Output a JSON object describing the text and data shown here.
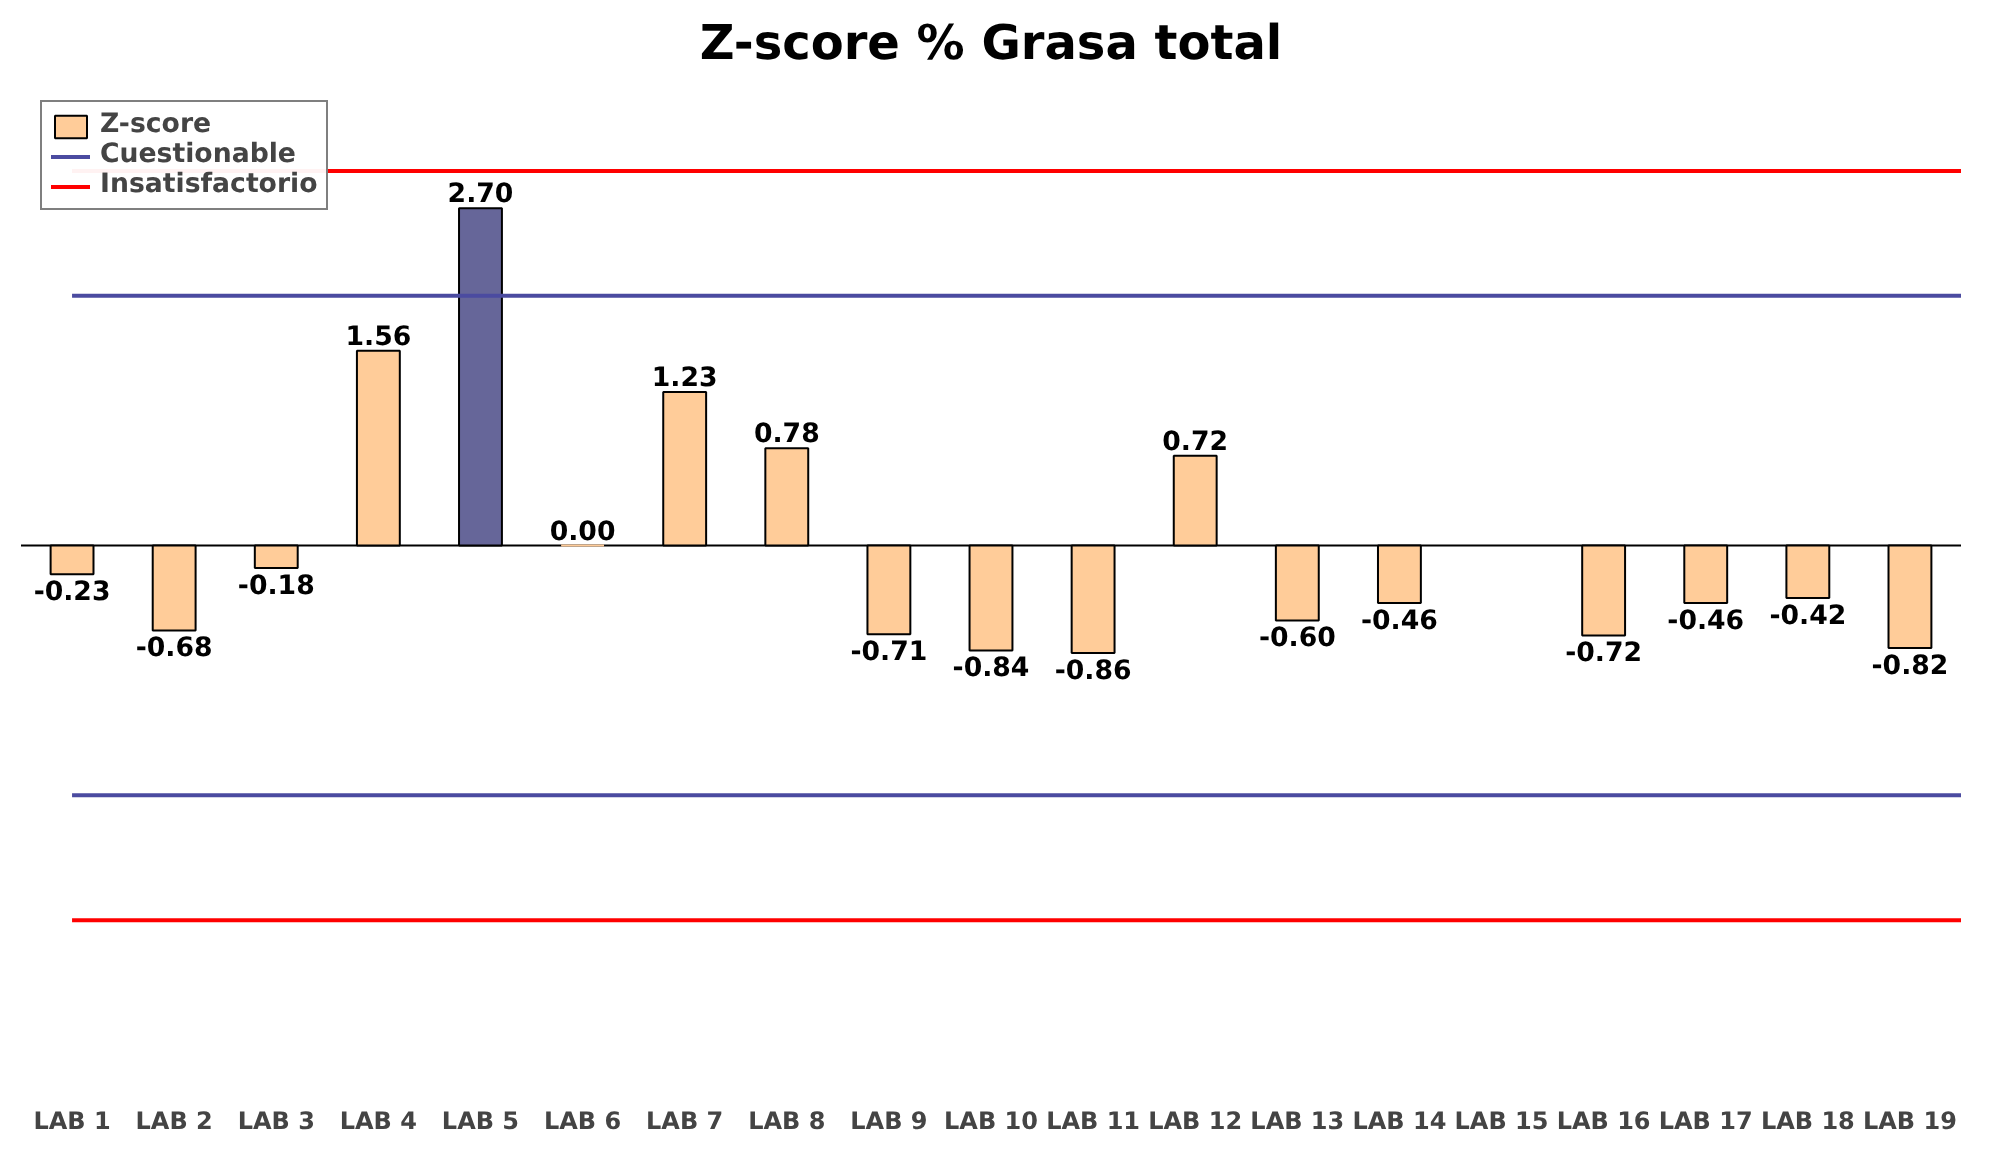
{
  "chart_data": {
    "type": "bar",
    "title": "Z-score % Grasa total",
    "categories": [
      "LAB 1",
      "LAB 2",
      "LAB 3",
      "LAB 4",
      "LAB 5",
      "LAB 6",
      "LAB 7",
      "LAB 8",
      "LAB 9",
      "LAB 10",
      "LAB 11",
      "LAB 12",
      "LAB 13",
      "LAB 14",
      "LAB 15",
      "LAB 16",
      "LAB 17",
      "LAB 18",
      "LAB 19"
    ],
    "series": [
      {
        "name": "Z-score",
        "colors": [
          "#ffcc99",
          "#ffcc99",
          "#ffcc99",
          "#ffcc99",
          "#666699",
          "#ffcc99",
          "#ffcc99",
          "#ffcc99",
          "#ffcc99",
          "#ffcc99",
          "#ffcc99",
          "#ffcc99",
          "#ffcc99",
          "#ffcc99",
          "#ffcc99",
          "#ffcc99",
          "#ffcc99",
          "#ffcc99",
          "#ffcc99"
        ],
        "values": [
          -0.23,
          -0.68,
          -0.18,
          1.56,
          2.7,
          0.0,
          1.23,
          0.78,
          -0.71,
          -0.84,
          -0.86,
          0.72,
          -0.6,
          -0.46,
          null,
          -0.72,
          -0.46,
          -0.42,
          -0.82
        ],
        "value_labels": [
          "-0.23",
          "-0.68",
          "-0.18",
          "1.56",
          "2.70",
          "0.00",
          "1.23",
          "0.78",
          "-0.71",
          "-0.84",
          "-0.86",
          "0.72",
          "-0.60",
          "-0.46",
          null,
          "-0.72",
          "-0.46",
          "-0.42",
          "-0.82"
        ]
      }
    ],
    "ref_lines": [
      {
        "axis": "y",
        "value": 2,
        "label": "Cuestionable",
        "color": "#4b4ba0"
      },
      {
        "axis": "y",
        "value": -2,
        "color": "#4b4ba0"
      },
      {
        "axis": "y",
        "value": 3,
        "label": "Insatisfactorio",
        "color": "#ff0000"
      },
      {
        "axis": "y",
        "value": -3,
        "color": "#ff0000"
      }
    ],
    "legend": "top left",
    "grid": false
  }
}
